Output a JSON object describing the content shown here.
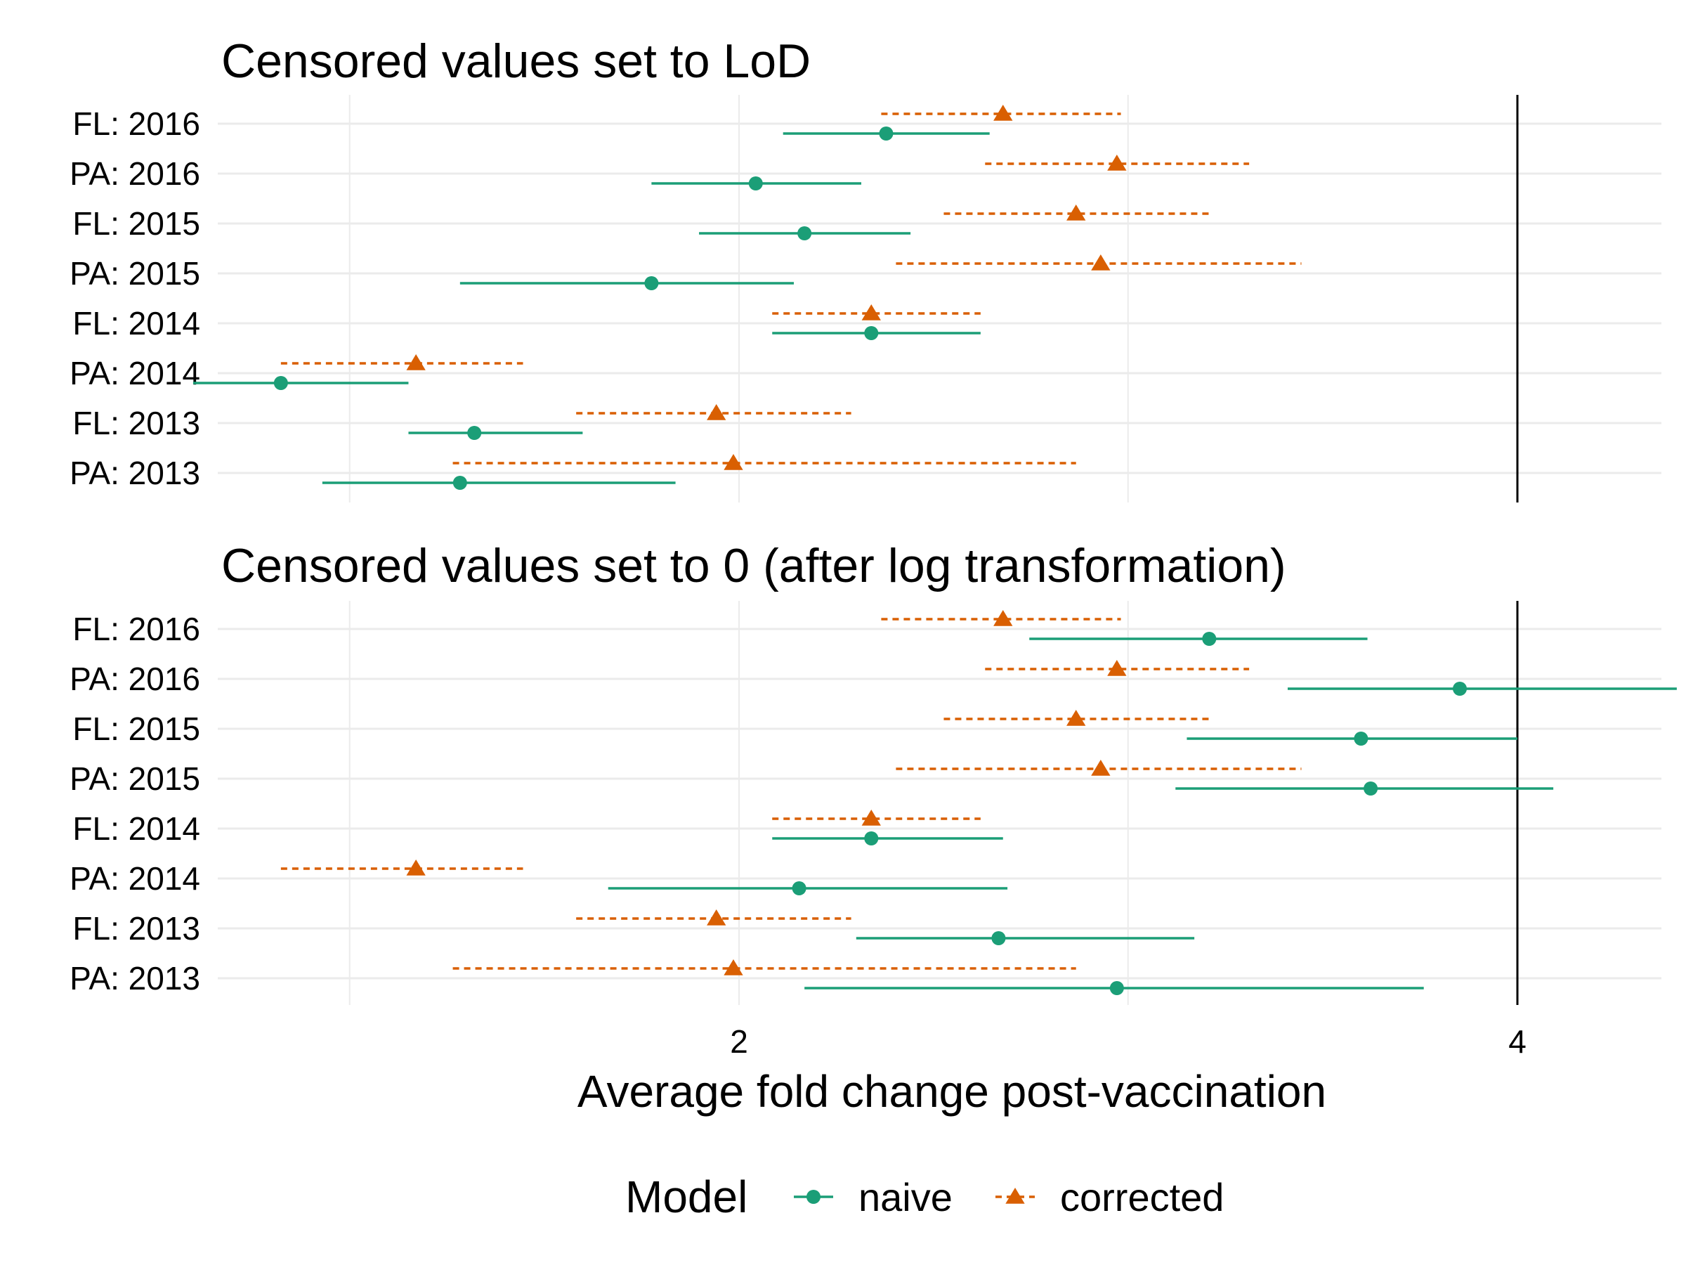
{
  "chart_data": [
    {
      "type": "forest",
      "title": "Censored values set to LoD",
      "categories": [
        "FL: 2016",
        "PA: 2016",
        "FL: 2015",
        "PA: 2015",
        "FL: 2014",
        "PA: 2014",
        "FL: 2013",
        "PA: 2013"
      ],
      "x_scale": "log2",
      "xlim": [
        1.2,
        4.6
      ],
      "x_ticks": [
        2,
        4
      ],
      "x_tick_labels": [
        "2",
        "4"
      ],
      "reference_line": 4,
      "grid": true,
      "series": [
        {
          "name": "naive",
          "estimate": [
            2.28,
            2.03,
            2.12,
            1.85,
            2.25,
            1.33,
            1.58,
            1.56
          ],
          "lower": [
            2.08,
            1.85,
            1.93,
            1.56,
            2.06,
            1.23,
            1.49,
            1.38
          ],
          "upper": [
            2.5,
            2.23,
            2.33,
            2.1,
            2.48,
            1.49,
            1.74,
            1.89
          ]
        },
        {
          "name": "corrected",
          "estimate": [
            2.53,
            2.8,
            2.7,
            2.76,
            2.25,
            1.5,
            1.96,
            1.99
          ],
          "lower": [
            2.27,
            2.49,
            2.4,
            2.3,
            2.06,
            1.33,
            1.73,
            1.55
          ],
          "upper": [
            2.81,
            3.15,
            3.04,
            3.3,
            2.48,
            1.65,
            2.21,
            2.7
          ]
        }
      ]
    },
    {
      "type": "forest",
      "title": "Censored values set to 0 (after log transformation)",
      "categories": [
        "FL: 2016",
        "PA: 2016",
        "FL: 2015",
        "PA: 2015",
        "FL: 2014",
        "PA: 2014",
        "FL: 2013",
        "PA: 2013"
      ],
      "x_scale": "log2",
      "xlim": [
        1.2,
        4.6
      ],
      "x_ticks": [
        2,
        4
      ],
      "x_tick_labels": [
        "2",
        "4"
      ],
      "reference_line": 4,
      "grid": true,
      "series": [
        {
          "name": "naive",
          "estimate": [
            3.04,
            3.8,
            3.48,
            3.51,
            2.25,
            2.11,
            2.52,
            2.8
          ],
          "lower": [
            2.59,
            3.26,
            2.98,
            2.95,
            2.06,
            1.78,
            2.22,
            2.12
          ],
          "upper": [
            3.5,
            4.61,
            4.0,
            4.13,
            2.53,
            2.54,
            3.0,
            3.68
          ]
        },
        {
          "name": "corrected",
          "estimate": [
            2.53,
            2.8,
            2.7,
            2.76,
            2.25,
            1.5,
            1.96,
            1.99
          ],
          "lower": [
            2.27,
            2.49,
            2.4,
            2.3,
            2.06,
            1.33,
            1.73,
            1.55
          ],
          "upper": [
            2.81,
            3.15,
            3.04,
            3.3,
            2.48,
            1.65,
            2.21,
            2.7
          ]
        }
      ]
    }
  ],
  "x_axis_title": "Average fold change post-vaccination",
  "legend": {
    "title": "Model",
    "placement": "bottom",
    "items": [
      {
        "label": "naive",
        "color": "#1b9e77",
        "shape": "circle",
        "line": "solid"
      },
      {
        "label": "corrected",
        "color": "#d95f02",
        "shape": "triangle",
        "line": "dashed"
      }
    ]
  }
}
